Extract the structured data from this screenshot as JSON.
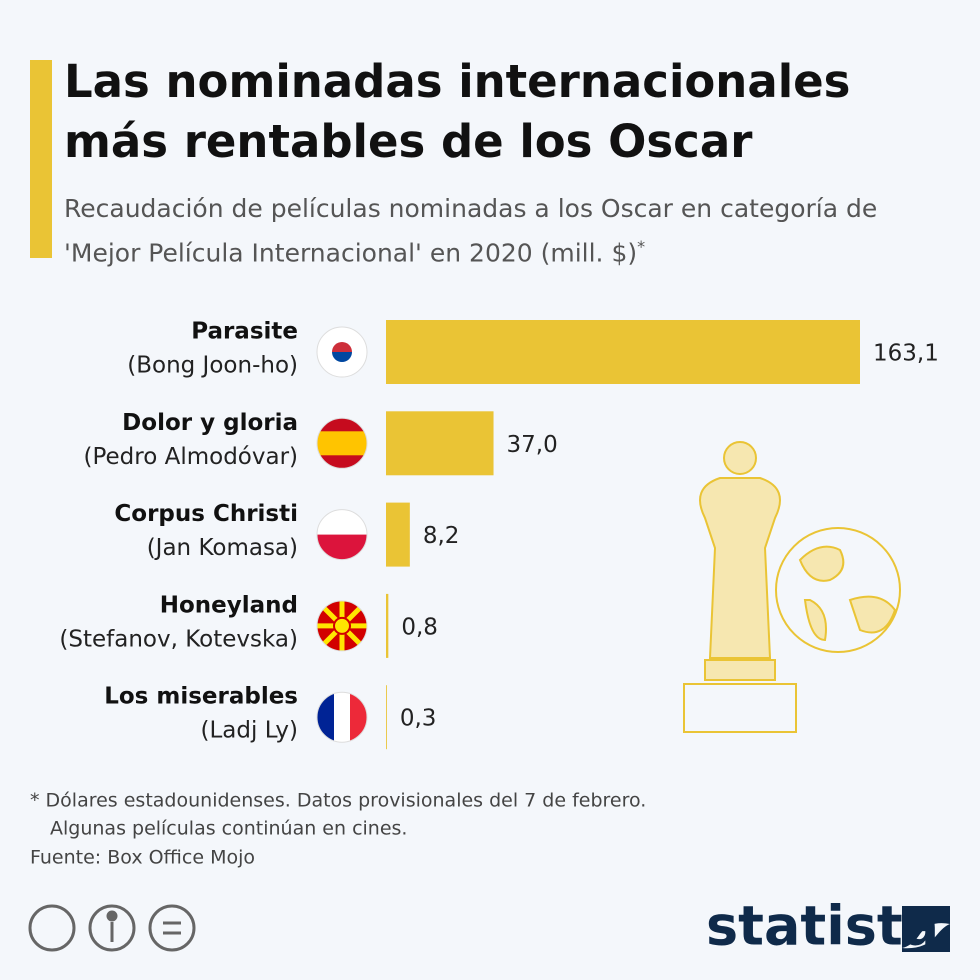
{
  "chart_data": {
    "type": "bar",
    "orientation": "horizontal",
    "title": "Las nominadas internacionales más rentables de los Oscar",
    "subtitle": "Recaudación de películas nominadas a los Oscar en categoría de 'Mejor Película Internacional' en 2020 (mill. $)",
    "subtitle_marker": "*",
    "categories": [
      "Parasite",
      "Dolor y gloria",
      "Corpus Christi",
      "Honeyland",
      "Los miserables"
    ],
    "directors": [
      "(Bong Joon-ho)",
      "(Pedro Almodóvar)",
      "(Jan Komasa)",
      "(Stefanov, Kotevska)",
      "(Ladj Ly)"
    ],
    "values": [
      163.1,
      37.0,
      8.2,
      0.8,
      0.3
    ],
    "value_labels": [
      "163,1",
      "37,0",
      "8,2",
      "0,8",
      "0,3"
    ],
    "color": "#eac435",
    "xlim": [
      0,
      163.1
    ],
    "notes": [
      "* Dólares estadounidenses. Datos provisionales del 7 de febrero.",
      "Algunas películas continúan en cines."
    ],
    "source": "Fuente: Box Office Mojo",
    "brand": "statista"
  }
}
